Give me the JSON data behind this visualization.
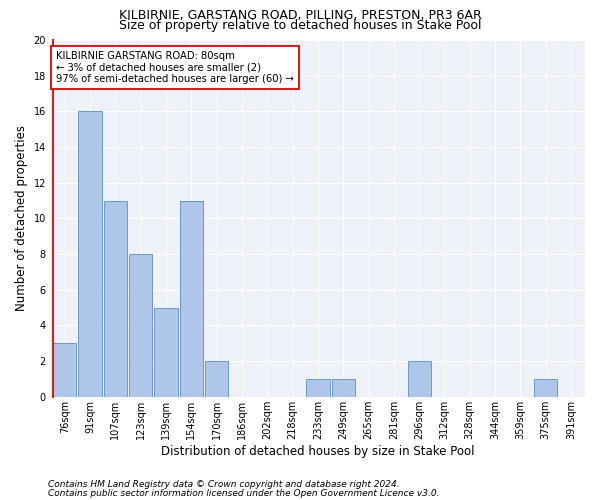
{
  "title1": "KILBIRNIE, GARSTANG ROAD, PILLING, PRESTON, PR3 6AR",
  "title2": "Size of property relative to detached houses in Stake Pool",
  "xlabel": "Distribution of detached houses by size in Stake Pool",
  "ylabel": "Number of detached properties",
  "bar_labels": [
    "76sqm",
    "91sqm",
    "107sqm",
    "123sqm",
    "139sqm",
    "154sqm",
    "170sqm",
    "186sqm",
    "202sqm",
    "218sqm",
    "233sqm",
    "249sqm",
    "265sqm",
    "281sqm",
    "296sqm",
    "312sqm",
    "328sqm",
    "344sqm",
    "359sqm",
    "375sqm",
    "391sqm"
  ],
  "bar_values": [
    3,
    16,
    11,
    8,
    5,
    11,
    2,
    0,
    0,
    0,
    1,
    1,
    0,
    0,
    2,
    0,
    0,
    0,
    0,
    1,
    0
  ],
  "bar_color": "#aec6e8",
  "bar_edge_color": "#5a8fc2",
  "highlight_color": "#cc2222",
  "annotation_title": "KILBIRNIE GARSTANG ROAD: 80sqm",
  "annotation_line1": "← 3% of detached houses are smaller (2)",
  "annotation_line2": "97% of semi-detached houses are larger (60) →",
  "annotation_box_color": "#cc2222",
  "ylim": [
    0,
    20
  ],
  "yticks": [
    0,
    2,
    4,
    6,
    8,
    10,
    12,
    14,
    16,
    18,
    20
  ],
  "footer1": "Contains HM Land Registry data © Crown copyright and database right 2024.",
  "footer2": "Contains public sector information licensed under the Open Government Licence v3.0.",
  "bg_color": "#eef2f8",
  "grid_color": "#ffffff",
  "title_fontsize": 9,
  "subtitle_fontsize": 9,
  "axis_label_fontsize": 8.5,
  "tick_fontsize": 7,
  "footer_fontsize": 6.5
}
